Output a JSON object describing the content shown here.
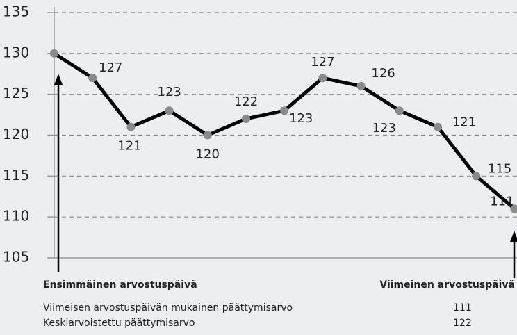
{
  "chart_data": {
    "type": "line",
    "values": [
      130,
      127,
      121,
      123,
      120,
      122,
      123,
      127,
      126,
      123,
      121,
      115,
      111
    ],
    "value_labels": [
      null,
      "127",
      "121",
      "123",
      "120",
      "122",
      "123",
      "127",
      "126",
      "123",
      "121",
      "115",
      "111"
    ],
    "color": "#000000",
    "marker_color": "#8a8a8a",
    "ylim": [
      105,
      135
    ],
    "yticks": [
      105,
      110,
      115,
      120,
      125,
      130,
      135
    ],
    "grid": true,
    "annotations": {
      "start": "Ensimmäinen arvostuspäivä",
      "end": "Viimeinen arvostuspäivä"
    }
  },
  "summary": [
    {
      "label": "Viimeisen arvostuspäivän mukainen päättymisarvo",
      "value": "111"
    },
    {
      "label": "Keskiarvoistettu päättymisarvo",
      "value": "122"
    }
  ]
}
